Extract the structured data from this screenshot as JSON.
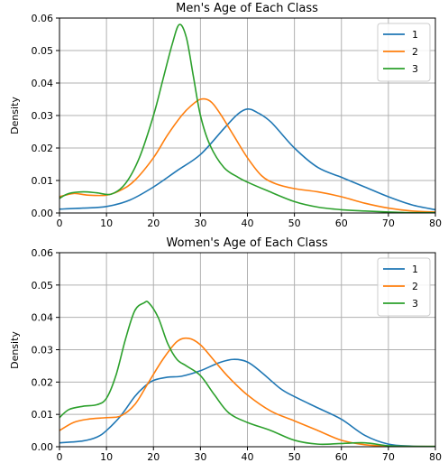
{
  "figure": {
    "background": "#ffffff",
    "axes_color": "#000000",
    "grid_color": "#b0b0b0",
    "series_colors": [
      "#1f77b4",
      "#ff7f0e",
      "#2ca02c"
    ]
  },
  "chart_data": [
    {
      "type": "line",
      "title": "Men's Age of Each Class",
      "xlabel": "",
      "ylabel": "Density",
      "xlim": [
        0,
        80
      ],
      "ylim": [
        0,
        0.06
      ],
      "xticks": [
        0,
        10,
        20,
        30,
        40,
        50,
        60,
        70,
        80
      ],
      "xtick_labels": [
        "0",
        "10",
        "20",
        "30",
        "40",
        "50",
        "60",
        "70",
        "80"
      ],
      "yticks": [
        0,
        0.01,
        0.02,
        0.03,
        0.04,
        0.05,
        0.06
      ],
      "ytick_labels": [
        "0.00",
        "0.01",
        "0.02",
        "0.03",
        "0.04",
        "0.05",
        "0.06"
      ],
      "grid": true,
      "legend": "top-right",
      "series": [
        {
          "name": "1",
          "color": "#1f77b4",
          "x": [
            0,
            5,
            10,
            15,
            20,
            25,
            30,
            35,
            38,
            40,
            42,
            45,
            50,
            55,
            60,
            65,
            70,
            75,
            80
          ],
          "y": [
            0.0012,
            0.0015,
            0.002,
            0.004,
            0.008,
            0.013,
            0.018,
            0.026,
            0.0305,
            0.032,
            0.031,
            0.028,
            0.02,
            0.014,
            0.011,
            0.008,
            0.005,
            0.0025,
            0.001
          ]
        },
        {
          "name": "2",
          "color": "#ff7f0e",
          "x": [
            0,
            3,
            6,
            10,
            13,
            16,
            20,
            23,
            26,
            28,
            30,
            32,
            34,
            37,
            40,
            43,
            46,
            50,
            55,
            60,
            65,
            70,
            75,
            80
          ],
          "y": [
            0.005,
            0.006,
            0.0055,
            0.0055,
            0.007,
            0.01,
            0.017,
            0.024,
            0.03,
            0.033,
            0.035,
            0.0345,
            0.031,
            0.024,
            0.017,
            0.0115,
            0.009,
            0.0075,
            0.0065,
            0.005,
            0.003,
            0.0015,
            0.0006,
            0.0003
          ]
        },
        {
          "name": "3",
          "color": "#2ca02c",
          "x": [
            0,
            2,
            5,
            8,
            11,
            14,
            17,
            20,
            22,
            24,
            25.5,
            27,
            28.5,
            30,
            32,
            35,
            38,
            40,
            44,
            50,
            55,
            60,
            65,
            70,
            75,
            80
          ],
          "y": [
            0.0045,
            0.006,
            0.0065,
            0.0062,
            0.0058,
            0.009,
            0.017,
            0.03,
            0.041,
            0.052,
            0.058,
            0.054,
            0.042,
            0.03,
            0.021,
            0.014,
            0.011,
            0.0095,
            0.007,
            0.0035,
            0.0018,
            0.001,
            0.0006,
            0.0003,
            0.0001,
            0.0001
          ]
        }
      ]
    },
    {
      "type": "line",
      "title": "Women's Age of Each Class",
      "xlabel": "",
      "ylabel": "Density",
      "xlim": [
        0,
        80
      ],
      "ylim": [
        0,
        0.06
      ],
      "xticks": [
        0,
        10,
        20,
        30,
        40,
        50,
        60,
        70,
        80
      ],
      "xtick_labels": [
        "0",
        "10",
        "20",
        "30",
        "40",
        "50",
        "60",
        "70",
        "80"
      ],
      "yticks": [
        0,
        0.01,
        0.02,
        0.03,
        0.04,
        0.05,
        0.06
      ],
      "ytick_labels": [
        "0.00",
        "0.01",
        "0.02",
        "0.03",
        "0.04",
        "0.05",
        "0.06"
      ],
      "grid": true,
      "legend": "top-right",
      "series": [
        {
          "name": "1",
          "color": "#1f77b4",
          "x": [
            0,
            5,
            8,
            10,
            13,
            16,
            18,
            20,
            23,
            26,
            30,
            34,
            37,
            40,
            43,
            47,
            50,
            55,
            60,
            65,
            70,
            75,
            80
          ],
          "y": [
            0.0012,
            0.0018,
            0.003,
            0.005,
            0.0095,
            0.0155,
            0.0185,
            0.0205,
            0.0215,
            0.0218,
            0.0235,
            0.026,
            0.027,
            0.0262,
            0.023,
            0.018,
            0.0155,
            0.012,
            0.0085,
            0.0035,
            0.0008,
            0.0002,
            0.0001
          ]
        },
        {
          "name": "2",
          "color": "#ff7f0e",
          "x": [
            0,
            3,
            6,
            10,
            13,
            16,
            19,
            22,
            25,
            27.5,
            30,
            33,
            36,
            40,
            45,
            50,
            55,
            60,
            65,
            70,
            75,
            80
          ],
          "y": [
            0.005,
            0.0075,
            0.0085,
            0.009,
            0.0095,
            0.013,
            0.02,
            0.027,
            0.0325,
            0.0335,
            0.0315,
            0.0265,
            0.0215,
            0.016,
            0.011,
            0.008,
            0.005,
            0.002,
            0.0006,
            0.0002,
            0.0001,
            0.0001
          ]
        },
        {
          "name": "3",
          "color": "#2ca02c",
          "x": [
            0,
            2,
            5,
            8,
            10,
            12,
            14,
            16,
            18,
            19,
            21,
            23,
            25,
            27,
            30,
            33,
            36,
            40,
            45,
            50,
            55,
            60,
            65,
            70,
            75,
            80
          ],
          "y": [
            0.009,
            0.0115,
            0.0125,
            0.013,
            0.015,
            0.022,
            0.033,
            0.042,
            0.0445,
            0.0445,
            0.04,
            0.032,
            0.027,
            0.025,
            0.022,
            0.016,
            0.0105,
            0.0075,
            0.005,
            0.002,
            0.0008,
            0.001,
            0.0012,
            0.0003,
            0.0001,
            0.0001
          ]
        }
      ]
    }
  ]
}
